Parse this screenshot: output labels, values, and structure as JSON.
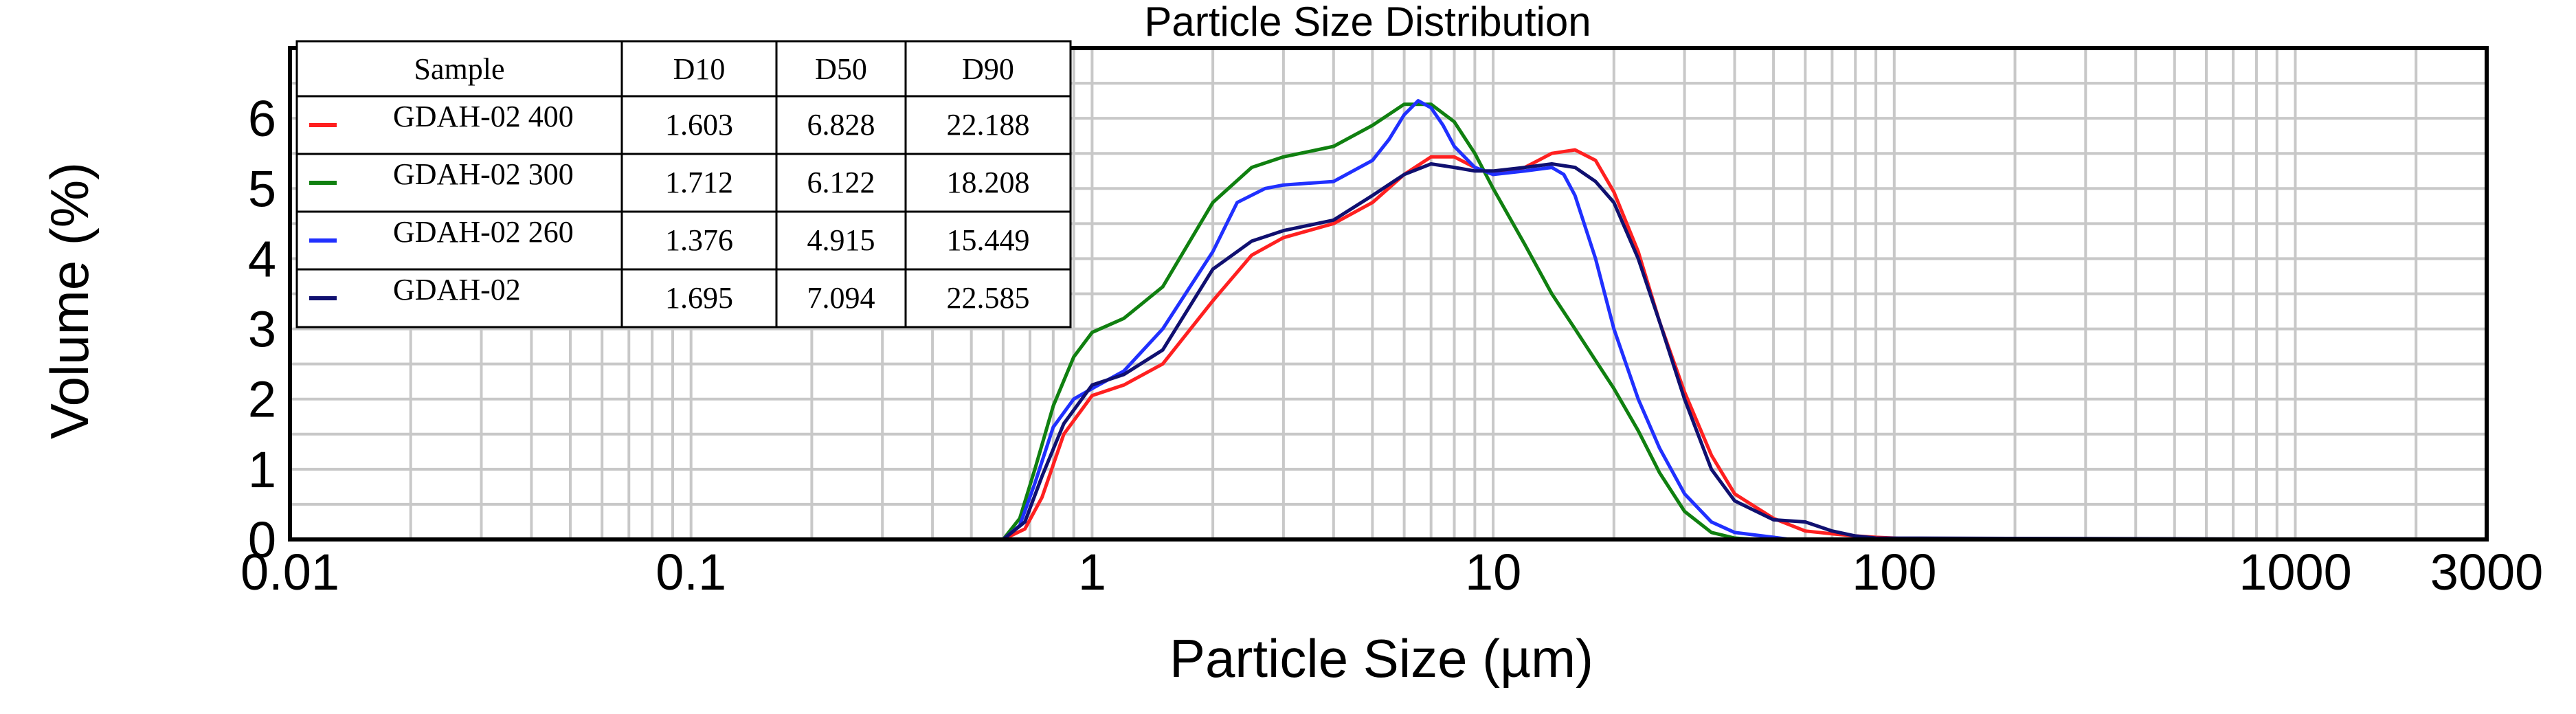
{
  "chart_data": {
    "type": "line",
    "title": "Particle Size Distribution",
    "xlabel": "Particle Size (µm)",
    "ylabel": "Volume (%)",
    "xscale": "log",
    "xlim": [
      0.01,
      3000
    ],
    "ylim": [
      0,
      7
    ],
    "grid": true,
    "x_ticks": [
      0.01,
      0.1,
      1,
      10,
      100,
      1000,
      3000
    ],
    "x_tick_labels": [
      "0.01",
      "0.1",
      "1",
      "10",
      "100",
      "1000",
      "3000"
    ],
    "y_ticks": [
      0,
      1,
      2,
      3,
      4,
      5,
      6
    ],
    "y_tick_labels": [
      "0",
      "1",
      "2",
      "3",
      "4",
      "5",
      "6"
    ],
    "legend_position": "top-left",
    "table": {
      "headers": [
        "Sample",
        "D10",
        "D50",
        "D90"
      ],
      "rows": [
        {
          "sample": "GDAH-02 400",
          "d10": "1.603",
          "d50": "6.828",
          "d90": "22.188",
          "color": "#ff2020"
        },
        {
          "sample": "GDAH-02 300",
          "d10": "1.712",
          "d50": "6.122",
          "d90": "18.208",
          "color": "#108010"
        },
        {
          "sample": "GDAH-02 260",
          "d10": "1.376",
          "d50": "4.915",
          "d90": "15.449",
          "color": "#2030ff"
        },
        {
          "sample": "GDAH-02",
          "d10": "1.695",
          "d50": "7.094",
          "d90": "22.585",
          "color": "#101070"
        }
      ]
    },
    "series": [
      {
        "name": "GDAH-02 400",
        "color": "#ff2020",
        "x": [
          0.02,
          0.6,
          0.68,
          0.75,
          0.85,
          1.0,
          1.2,
          1.5,
          2.0,
          2.5,
          3.0,
          4.0,
          5.0,
          6.0,
          7.0,
          8.0,
          9.0,
          10.0,
          12.0,
          14.0,
          16.0,
          18.0,
          20.0,
          23.0,
          26.0,
          30.0,
          35.0,
          40.0,
          50.0,
          60.0,
          70.0,
          80.0,
          90.0,
          100.0,
          110.0,
          2000.0
        ],
        "y": [
          0,
          0,
          0.15,
          0.6,
          1.5,
          2.05,
          2.2,
          2.5,
          3.4,
          4.05,
          4.3,
          4.5,
          4.8,
          5.2,
          5.45,
          5.45,
          5.3,
          5.2,
          5.3,
          5.5,
          5.55,
          5.4,
          4.95,
          4.1,
          3.1,
          2.1,
          1.2,
          0.65,
          0.3,
          0.12,
          0.08,
          0.05,
          0.03,
          0.02,
          0,
          0
        ]
      },
      {
        "name": "GDAH-02 300",
        "color": "#108010",
        "x": [
          0.02,
          0.6,
          0.66,
          0.72,
          0.8,
          0.9,
          1.0,
          1.2,
          1.5,
          2.0,
          2.5,
          3.0,
          4.0,
          5.0,
          6.0,
          7.0,
          8.0,
          9.0,
          10.0,
          12.0,
          14.0,
          16.0,
          18.0,
          20.0,
          23.0,
          26.0,
          30.0,
          35.0,
          40.0,
          45.0,
          2000.0
        ],
        "y": [
          0,
          0,
          0.3,
          1.0,
          1.9,
          2.6,
          2.95,
          3.15,
          3.6,
          4.8,
          5.3,
          5.45,
          5.6,
          5.9,
          6.2,
          6.2,
          5.95,
          5.5,
          5.0,
          4.2,
          3.5,
          3.0,
          2.55,
          2.15,
          1.55,
          0.95,
          0.4,
          0.1,
          0.02,
          0,
          0
        ]
      },
      {
        "name": "GDAH-02 260",
        "color": "#2030ff",
        "x": [
          0.02,
          0.6,
          0.66,
          0.72,
          0.8,
          0.9,
          1.0,
          1.2,
          1.5,
          2.0,
          2.3,
          2.7,
          3.0,
          4.0,
          5.0,
          5.5,
          6.0,
          6.5,
          7.0,
          7.5,
          8.0,
          9.0,
          10.0,
          12.0,
          14.0,
          15.0,
          16.0,
          18.0,
          20.0,
          23.0,
          26.0,
          30.0,
          35.0,
          40.0,
          50.0,
          55.0,
          2000.0
        ],
        "y": [
          0,
          0,
          0.2,
          0.8,
          1.6,
          2.0,
          2.15,
          2.4,
          3.0,
          4.1,
          4.8,
          5.0,
          5.05,
          5.1,
          5.4,
          5.7,
          6.05,
          6.25,
          6.15,
          5.9,
          5.6,
          5.3,
          5.2,
          5.25,
          5.3,
          5.2,
          4.9,
          4.0,
          3.0,
          2.0,
          1.3,
          0.65,
          0.25,
          0.1,
          0.03,
          0,
          0
        ]
      },
      {
        "name": "GDAH-02",
        "color": "#101070",
        "x": [
          0.02,
          0.6,
          0.68,
          0.75,
          0.85,
          1.0,
          1.2,
          1.5,
          2.0,
          2.5,
          3.0,
          4.0,
          5.0,
          6.0,
          7.0,
          8.0,
          9.0,
          10.0,
          12.0,
          14.0,
          16.0,
          18.0,
          20.0,
          23.0,
          26.0,
          30.0,
          35.0,
          40.0,
          50.0,
          60.0,
          70.0,
          80.0,
          90.0,
          2000.0
        ],
        "y": [
          0,
          0,
          0.25,
          0.9,
          1.65,
          2.2,
          2.35,
          2.7,
          3.85,
          4.25,
          4.4,
          4.55,
          4.9,
          5.2,
          5.35,
          5.3,
          5.25,
          5.25,
          5.3,
          5.35,
          5.3,
          5.1,
          4.8,
          4.0,
          3.1,
          2.0,
          1.0,
          0.55,
          0.28,
          0.25,
          0.12,
          0.05,
          0.02,
          0
        ]
      }
    ]
  }
}
